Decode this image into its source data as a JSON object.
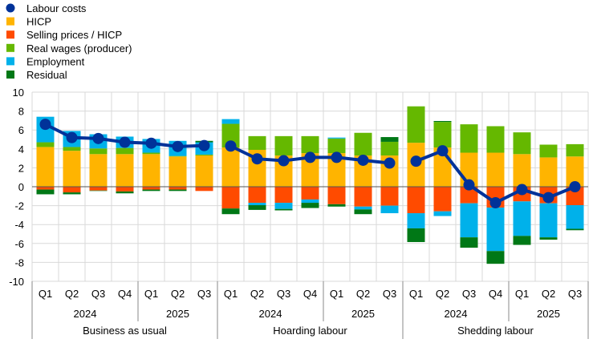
{
  "chart_data": {
    "type": "bar",
    "stacked": true,
    "ylim": [
      -10,
      10
    ],
    "yticks": [
      -10,
      -8,
      -6,
      -4,
      -2,
      0,
      2,
      4,
      6,
      8,
      10
    ],
    "grid": true,
    "legend_position": "top-left",
    "quarters": [
      "Q1",
      "Q2",
      "Q3",
      "Q4",
      "Q1",
      "Q2",
      "Q3"
    ],
    "years": [
      {
        "label": "2024",
        "span": 4
      },
      {
        "label": "2025",
        "span": 3
      }
    ],
    "groups": [
      "Business as usual",
      "Hoarding labour",
      "Shedding labour"
    ],
    "series": [
      {
        "name": "HICP",
        "color": "#FFB400",
        "values": [
          4.2,
          3.8,
          3.45,
          3.45,
          3.45,
          3.2,
          3.3,
          4.15,
          3.9,
          3.3,
          3.55,
          3.55,
          3.3,
          3.3,
          4.65,
          4.15,
          3.6,
          3.6,
          3.45,
          3.1,
          3.2
        ]
      },
      {
        "name": "Selling prices / HICP",
        "color": "#FF4B00",
        "values": [
          -0.3,
          -0.6,
          -0.4,
          -0.5,
          -0.3,
          -0.3,
          -0.45,
          -2.3,
          -1.7,
          -1.7,
          -1.35,
          -1.85,
          -2.1,
          -2.0,
          -2.8,
          -2.6,
          -1.75,
          -2.2,
          -1.55,
          -1.75,
          -1.95
        ]
      },
      {
        "name": "Real wages (producer)",
        "color": "#65B800",
        "values": [
          0.5,
          0.4,
          0.6,
          0.65,
          0.15,
          0.05,
          0.1,
          2.5,
          1.45,
          2.05,
          1.8,
          1.55,
          2.4,
          1.45,
          3.85,
          2.7,
          3.0,
          2.8,
          2.3,
          1.35,
          1.3
        ]
      },
      {
        "name": "Employment",
        "color": "#00B1EA",
        "values": [
          2.7,
          1.7,
          1.5,
          1.2,
          1.45,
          1.6,
          1.3,
          0.5,
          -0.25,
          -0.65,
          -0.35,
          0.1,
          -0.3,
          -0.8,
          -1.6,
          -0.5,
          -3.6,
          -4.6,
          -3.65,
          -3.6,
          -2.5
        ]
      },
      {
        "name": "Residual",
        "color": "#007816",
        "values": [
          -0.5,
          -0.2,
          -0.05,
          -0.2,
          -0.15,
          -0.15,
          0.15,
          -0.6,
          -0.5,
          -0.15,
          -0.55,
          -0.25,
          -0.5,
          0.5,
          -1.45,
          0.1,
          -1.1,
          -1.35,
          -0.95,
          -0.25,
          -0.15
        ]
      }
    ],
    "line": {
      "name": "Labour costs",
      "color": "#003299",
      "values": [
        6.6,
        5.2,
        5.1,
        4.7,
        4.6,
        4.25,
        4.35,
        4.3,
        2.95,
        2.75,
        3.1,
        3.1,
        2.8,
        2.5,
        2.7,
        3.8,
        0.2,
        -1.7,
        -0.3,
        -1.15,
        0.0
      ]
    },
    "legend": [
      "Labour costs",
      "HICP",
      "Selling prices / HICP",
      "Real wages (producer)",
      "Employment",
      "Residual"
    ]
  }
}
